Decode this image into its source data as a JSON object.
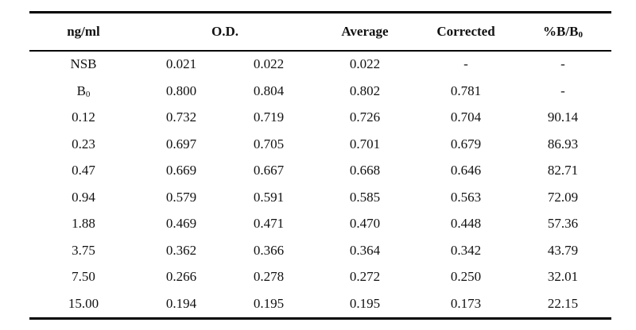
{
  "table": {
    "headers": {
      "conc": "ng/ml",
      "od": "O.D.",
      "average": "Average",
      "corrected": "Corrected",
      "pct_main": "%B/B",
      "pct_sub": "0"
    },
    "rows": [
      {
        "label": "NSB",
        "label_sub": "",
        "od1": "0.021",
        "od2": "0.022",
        "average": "0.022",
        "corrected": "-",
        "pct": "-"
      },
      {
        "label": "B",
        "label_sub": "0",
        "od1": "0.800",
        "od2": "0.804",
        "average": "0.802",
        "corrected": "0.781",
        "pct": "-"
      },
      {
        "label": "0.12",
        "label_sub": "",
        "od1": "0.732",
        "od2": "0.719",
        "average": "0.726",
        "corrected": "0.704",
        "pct": "90.14"
      },
      {
        "label": "0.23",
        "label_sub": "",
        "od1": "0.697",
        "od2": "0.705",
        "average": "0.701",
        "corrected": "0.679",
        "pct": "86.93"
      },
      {
        "label": "0.47",
        "label_sub": "",
        "od1": "0.669",
        "od2": "0.667",
        "average": "0.668",
        "corrected": "0.646",
        "pct": "82.71"
      },
      {
        "label": "0.94",
        "label_sub": "",
        "od1": "0.579",
        "od2": "0.591",
        "average": "0.585",
        "corrected": "0.563",
        "pct": "72.09"
      },
      {
        "label": "1.88",
        "label_sub": "",
        "od1": "0.469",
        "od2": "0.471",
        "average": "0.470",
        "corrected": "0.448",
        "pct": "57.36"
      },
      {
        "label": "3.75",
        "label_sub": "",
        "od1": "0.362",
        "od2": "0.366",
        "average": "0.364",
        "corrected": "0.342",
        "pct": "43.79"
      },
      {
        "label": "7.50",
        "label_sub": "",
        "od1": "0.266",
        "od2": "0.278",
        "average": "0.272",
        "corrected": "0.250",
        "pct": "32.01"
      },
      {
        "label": "15.00",
        "label_sub": "",
        "od1": "0.194",
        "od2": "0.195",
        "average": "0.195",
        "corrected": "0.173",
        "pct": "22.15"
      }
    ]
  }
}
